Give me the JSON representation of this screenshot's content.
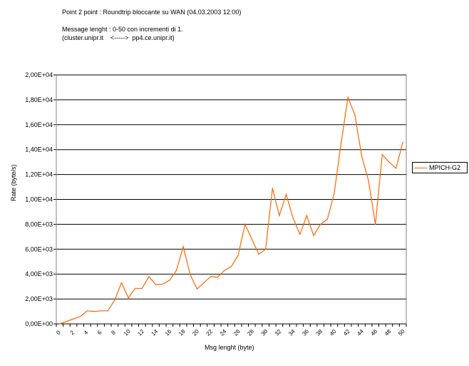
{
  "header": {
    "line1": "Point 2 point : Roundtrip bloccante su WAN (04.03.2003 12:00)",
    "line2": "Message lenght : 0-50 con incrementi di 1.",
    "line3": "(cluster.unipr.it    <----->  pp4.ce.unipr.it)"
  },
  "chart_data": {
    "type": "line",
    "title": "Point 2 point : Roundtrip bloccante su WAN (04.03.2003 12:00)",
    "xlabel": "Msg lenght (byte)",
    "ylabel": "Rate (byte/s)",
    "ylim": [
      0,
      20000
    ],
    "grid": true,
    "legend": "right",
    "x": [
      0,
      1,
      2,
      3,
      4,
      5,
      6,
      7,
      8,
      9,
      10,
      11,
      12,
      13,
      14,
      15,
      16,
      17,
      18,
      19,
      20,
      21,
      22,
      23,
      24,
      25,
      26,
      27,
      28,
      29,
      30,
      31,
      32,
      33,
      34,
      35,
      36,
      37,
      38,
      39,
      40,
      41,
      42,
      43,
      44,
      45,
      46,
      47,
      48,
      49,
      50
    ],
    "x_tick_labels": [
      "0",
      "2",
      "4",
      "6",
      "8",
      "10",
      "12",
      "14",
      "16",
      "18",
      "20",
      "22",
      "24",
      "26",
      "28",
      "30",
      "32",
      "34",
      "36",
      "38",
      "40",
      "42",
      "44",
      "46",
      "48",
      "50"
    ],
    "y_tick_labels": [
      "0,00E+00",
      "2,00E+03",
      "4,00E+03",
      "6,00E+03",
      "8,00E+03",
      "1,00E+04",
      "1,20E+04",
      "1,40E+04",
      "1,60E+04",
      "1,80E+04",
      "2,00E+04"
    ],
    "series": [
      {
        "name": "MPICH-G2",
        "color": "#ff6600",
        "values": [
          0,
          200,
          400,
          600,
          1050,
          1000,
          1050,
          1050,
          1900,
          3300,
          2100,
          2850,
          2850,
          3800,
          3150,
          3200,
          3500,
          4300,
          6200,
          4000,
          2800,
          3300,
          3800,
          3750,
          4300,
          4600,
          5500,
          8000,
          6800,
          5600,
          6000,
          10900,
          8700,
          10400,
          8500,
          7200,
          8700,
          7100,
          8000,
          8400,
          10500,
          14500,
          18200,
          16800,
          13500,
          11500,
          8000,
          13600,
          13000,
          12500,
          14600
        ]
      }
    ]
  }
}
